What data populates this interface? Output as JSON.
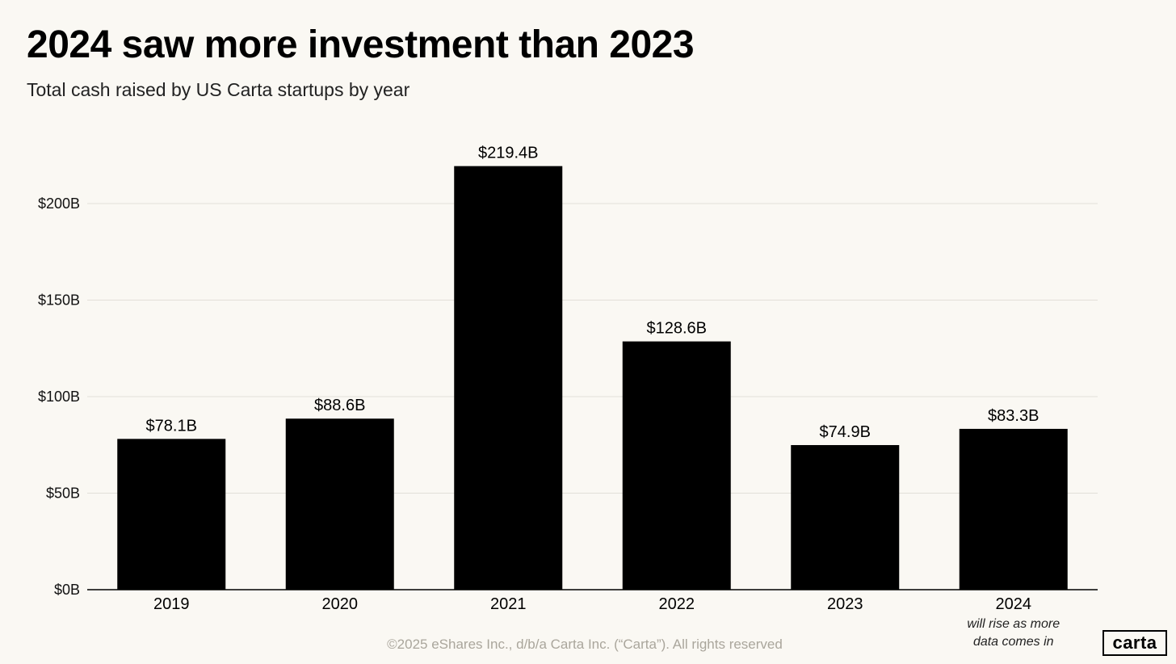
{
  "title": "2024 saw more investment than 2023",
  "subtitle": "Total cash raised by US Carta startups by year",
  "footer": "©2025 eShares Inc., d/b/a Carta Inc. (“Carta”). All rights reserved",
  "logo": "carta",
  "colors": {
    "background": "#faf8f3",
    "bar": "#000000",
    "grid": "#e2dfd8"
  },
  "chart_data": {
    "type": "bar",
    "title": "2024 saw more investment than 2023",
    "subtitle": "Total cash raised by US Carta startups by year",
    "categories": [
      "2019",
      "2020",
      "2021",
      "2022",
      "2023",
      "2024"
    ],
    "category_notes": [
      "",
      "",
      "",
      "",
      "",
      "will rise as more data comes in"
    ],
    "values": [
      78.1,
      88.6,
      219.4,
      128.6,
      74.9,
      83.3
    ],
    "data_labels": [
      "$78.1B",
      "$88.6B",
      "$219.4B",
      "$128.6B",
      "$74.9B",
      "$83.3B"
    ],
    "unit": "billion USD",
    "xlabel": "",
    "ylabel": "",
    "ylim": [
      0,
      200
    ],
    "y_ticks": [
      0,
      50,
      100,
      150,
      200
    ],
    "y_tick_labels": [
      "$0B",
      "$50B",
      "$100B",
      "$150B",
      "$200B"
    ],
    "grid": true,
    "legend": "none"
  }
}
